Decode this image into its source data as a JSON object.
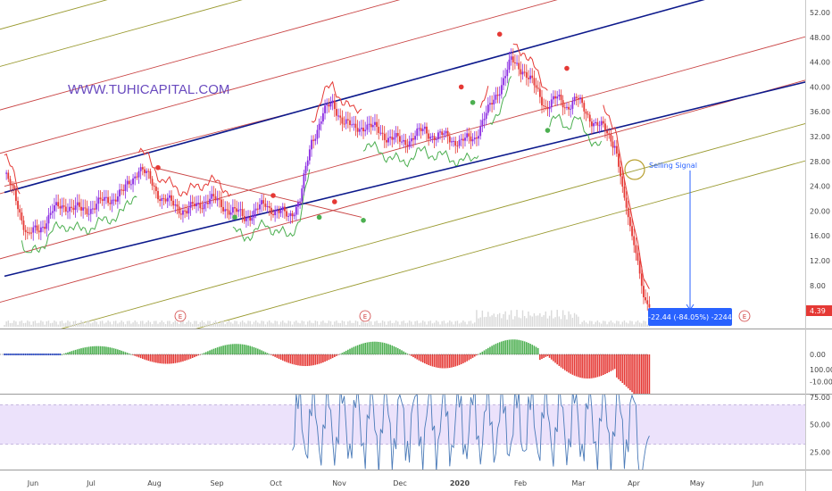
{
  "watermark": "WWW.TUHICAPITAL.COM",
  "signal_label": "Selling Signal",
  "measure_badge": "-22.44 (-84.05%) -2244",
  "last_price": "4.39",
  "earnings_marker": "E",
  "colors": {
    "bull": "#8a2be2",
    "bear": "#e53935",
    "channel_blue": "#0d1a8c",
    "red_line": "#c94444",
    "olive_line": "#9a9a30",
    "supertrend_up": "#4caf50",
    "supertrend_down": "#e53935",
    "badge": "#2962ff",
    "price_badge": "#e53935",
    "osc_pos": "#4caf50",
    "osc_neg": "#e53935",
    "stoch": "#4a7ab8",
    "stoch_band": "#ece2fb"
  },
  "chart_data": [
    {
      "type": "candlestick",
      "title": "",
      "x": [
        "Jun",
        "Jul",
        "Aug",
        "Sep",
        "Oct",
        "Nov",
        "Dec",
        "2020",
        "Feb",
        "Mar",
        "Apr",
        "May",
        "Jun"
      ],
      "y_ticks": [
        "52.00",
        "48.00",
        "44.00",
        "40.00",
        "36.00",
        "32.00",
        "28.00",
        "24.00",
        "20.00",
        "16.00",
        "12.00",
        "8.00"
      ],
      "ylim": [
        4,
        52
      ],
      "close_path": [
        [
          0,
          26
        ],
        [
          6,
          22
        ],
        [
          12,
          16
        ],
        [
          18,
          17
        ],
        [
          25,
          20
        ],
        [
          32,
          21
        ],
        [
          40,
          20
        ],
        [
          48,
          21
        ],
        [
          55,
          22
        ],
        [
          62,
          23
        ],
        [
          70,
          27
        ],
        [
          76,
          25
        ],
        [
          82,
          22
        ],
        [
          88,
          21
        ],
        [
          95,
          20
        ],
        [
          101,
          21
        ],
        [
          107,
          22
        ],
        [
          113,
          21
        ],
        [
          119,
          20
        ],
        [
          125,
          19
        ],
        [
          131,
          20
        ],
        [
          136,
          21
        ],
        [
          142,
          20
        ],
        [
          148,
          19
        ],
        [
          154,
          22
        ],
        [
          160,
          31
        ],
        [
          166,
          36
        ],
        [
          171,
          37
        ],
        [
          176,
          35
        ],
        [
          182,
          33
        ],
        [
          188,
          34
        ],
        [
          194,
          33
        ],
        [
          200,
          32
        ],
        [
          207,
          31
        ],
        [
          213,
          32
        ],
        [
          219,
          33
        ],
        [
          225,
          32
        ],
        [
          231,
          32
        ],
        [
          238,
          31
        ],
        [
          245,
          32
        ],
        [
          252,
          36
        ],
        [
          258,
          40
        ],
        [
          264,
          44
        ],
        [
          270,
          43
        ],
        [
          276,
          40
        ],
        [
          282,
          37
        ],
        [
          288,
          38
        ],
        [
          293,
          37
        ],
        [
          298,
          38
        ],
        [
          303,
          36
        ],
        [
          308,
          34
        ],
        [
          313,
          33
        ],
        [
          318,
          31
        ],
        [
          323,
          22
        ],
        [
          327,
          16
        ],
        [
          330,
          12
        ],
        [
          333,
          6
        ],
        [
          336,
          4.4
        ]
      ],
      "lines": [
        {
          "kind": "channel_upper",
          "color": "blue",
          "p1": [
            0,
            23
          ],
          "p2": [
            340,
            52
          ]
        },
        {
          "kind": "channel_lower",
          "color": "blue",
          "p1": [
            0,
            9.5
          ],
          "p2": [
            340,
            35
          ]
        },
        {
          "kind": "fan",
          "color": "red"
        },
        {
          "kind": "fan",
          "color": "olive"
        }
      ],
      "annotations": [
        "Selling Signal",
        "-22.44 (-84.05%) -2244",
        "4.39",
        "E",
        "E",
        "E"
      ]
    },
    {
      "type": "bar",
      "title": "",
      "y_ticks": [
        "0.00",
        "-10.00"
      ],
      "ylim": [
        -13,
        7
      ]
    },
    {
      "type": "line",
      "title": "",
      "y_ticks": [
        "100.00",
        "75.00",
        "50.00",
        "25.00"
      ],
      "ylim": [
        0,
        100
      ],
      "band": [
        32,
        68
      ]
    }
  ]
}
